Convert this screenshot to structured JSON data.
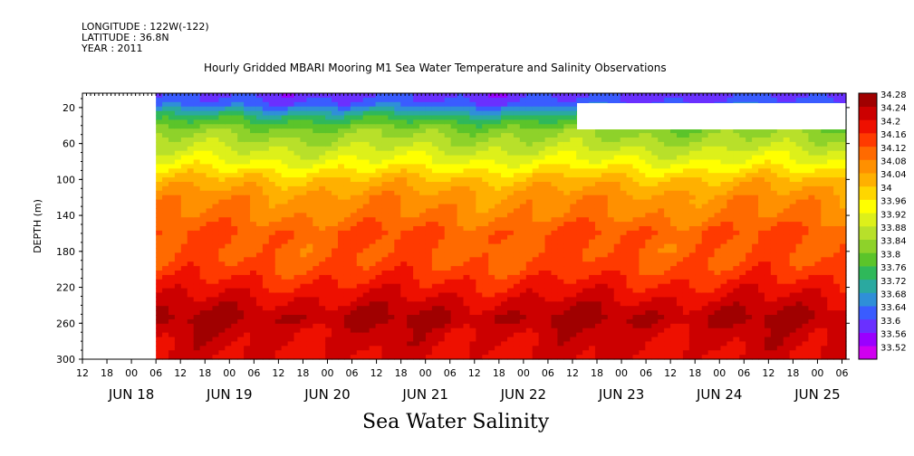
{
  "header": {
    "longitude": "LONGITUDE : 122W(-122)",
    "latitude": "LATITUDE : 36.8N",
    "year": "YEAR : 2011"
  },
  "chart_data": {
    "type": "heatmap",
    "title": "Hourly Gridded MBARI Mooring M1 Sea Water Temperature and Salinity Observations",
    "footer_label": "Sea Water Salinity",
    "ylabel": "DEPTH (m)",
    "y_ticks": [
      "20",
      "60",
      "100",
      "140",
      "180",
      "220",
      "260",
      "300"
    ],
    "y_tick_values": [
      20,
      60,
      100,
      140,
      180,
      220,
      260,
      300
    ],
    "ylim": [
      300,
      4
    ],
    "hour_ticks": [
      "12",
      "18",
      "00",
      "06",
      "12",
      "18",
      "00",
      "06",
      "12",
      "18",
      "00",
      "06",
      "12",
      "18",
      "00",
      "06",
      "12",
      "18",
      "00",
      "06",
      "12",
      "18",
      "00",
      "06",
      "12",
      "18",
      "00",
      "06",
      "12",
      "18",
      "00",
      "06"
    ],
    "day_labels": [
      "JUN 18",
      "JUN 19",
      "JUN 20",
      "JUN 21",
      "JUN 22",
      "JUN 23",
      "JUN 24",
      "JUN 25"
    ],
    "day_label_hours": [
      0,
      24,
      48,
      72,
      96,
      120,
      144,
      168
    ],
    "x_start_hours_from_jun18": -12,
    "x_end_hours_from_jun18": 175,
    "data_start_hours_from_jun18": 6,
    "colorbar_levels": [
      "34.28",
      "34.24",
      "34.2",
      "34.16",
      "34.12",
      "34.08",
      "34.04",
      "34",
      "33.96",
      "33.92",
      "33.88",
      "33.84",
      "33.8",
      "33.76",
      "33.72",
      "33.68",
      "33.64",
      "33.6",
      "33.56",
      "33.52"
    ],
    "colorbar_min": 33.52,
    "colorbar_max": 34.28,
    "colorbar_colors": [
      "#d000f0",
      "#9a00ff",
      "#6a30ff",
      "#3a5cff",
      "#2f8fd8",
      "#2aa9a0",
      "#2fb85a",
      "#5bc42a",
      "#8ed22a",
      "#b8e02a",
      "#ddf01a",
      "#ffff00",
      "#ffd600",
      "#ffb000",
      "#ff9000",
      "#ff6a00",
      "#ff3a00",
      "#ee1000",
      "#cc0000",
      "#a00000"
    ],
    "salinity_profile": [
      {
        "depth": 4,
        "value": 33.62
      },
      {
        "depth": 15,
        "value": 33.64
      },
      {
        "depth": 30,
        "value": 33.76
      },
      {
        "depth": 45,
        "value": 33.84
      },
      {
        "depth": 60,
        "value": 33.88
      },
      {
        "depth": 80,
        "value": 33.94
      },
      {
        "depth": 100,
        "value": 34.02
      },
      {
        "depth": 120,
        "value": 34.07
      },
      {
        "depth": 140,
        "value": 34.09
      },
      {
        "depth": 160,
        "value": 34.13
      },
      {
        "depth": 180,
        "value": 34.12
      },
      {
        "depth": 200,
        "value": 34.14
      },
      {
        "depth": 220,
        "value": 34.18
      },
      {
        "depth": 240,
        "value": 34.22
      },
      {
        "depth": 255,
        "value": 34.25
      },
      {
        "depth": 270,
        "value": 34.22
      },
      {
        "depth": 300,
        "value": 34.2
      }
    ]
  }
}
